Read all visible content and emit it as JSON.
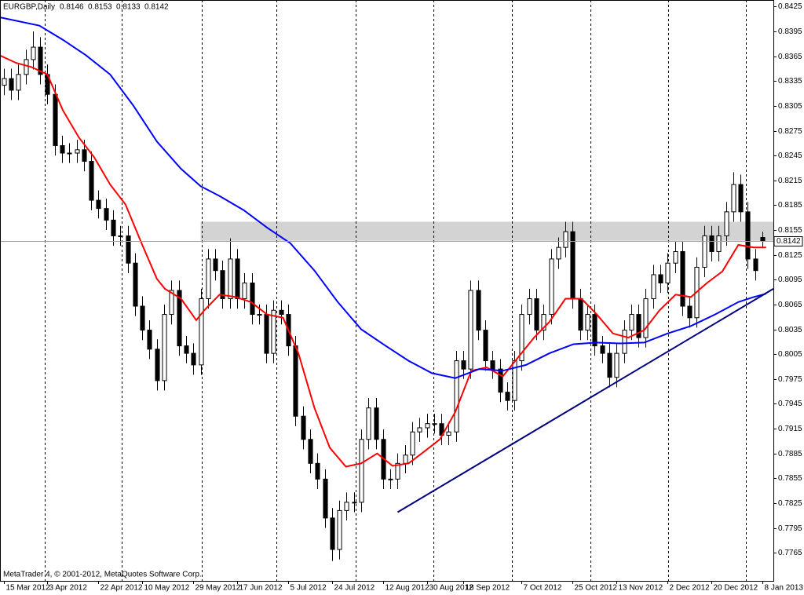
{
  "chart_data": {
    "type": "candlestick",
    "symbol": "EURGBP,Daily",
    "header_ohlc": [
      0.8146,
      0.8153,
      0.8133,
      0.8142
    ],
    "footer": "MetaTrader 4, © 2001-2012, MetaQuotes Software Corp.",
    "xlim": [
      -0.5,
      105.5
    ],
    "ylim": [
      0.7731,
      0.8433
    ],
    "yticks": [
      0.7765,
      0.7795,
      0.7825,
      0.7855,
      0.7885,
      0.7915,
      0.7945,
      0.7975,
      0.8005,
      0.8035,
      0.8065,
      0.8095,
      0.8125,
      0.8155,
      0.8185,
      0.8215,
      0.8245,
      0.8275,
      0.8305,
      0.8335,
      0.8365,
      0.8395,
      0.8425
    ],
    "xticks": [
      {
        "value": 0,
        "label": "15 Mar 2012"
      },
      {
        "value": 6,
        "label": "3 Apr 2012"
      },
      {
        "value": 13,
        "label": "22 Apr 2012"
      },
      {
        "value": 19,
        "label": "10 May 2012"
      },
      {
        "value": 26,
        "label": "29 May 2012"
      },
      {
        "value": 32,
        "label": "17 Jun 2012"
      },
      {
        "value": 39,
        "label": "5 Jul 2012"
      },
      {
        "value": 45,
        "label": "24 Jul 2012"
      },
      {
        "value": 52,
        "label": "12 Aug 2012"
      },
      {
        "value": 58,
        "label": "30 Aug 2012"
      },
      {
        "value": 63,
        "label": "18 Sep 2012"
      },
      {
        "value": 71,
        "label": "7 Oct 2012"
      },
      {
        "value": 78,
        "label": "25 Oct 2012"
      },
      {
        "value": 84,
        "label": "13 Nov 2012"
      },
      {
        "value": 91,
        "label": "2 Dec 2012"
      },
      {
        "value": 97,
        "label": "20 Dec 2012"
      },
      {
        "value": 104,
        "label": "8 Jan 2013"
      }
    ],
    "open": [
      0.833,
      0.8338,
      0.8324,
      0.8343,
      0.8361,
      0.8376,
      0.8343,
      0.8319,
      0.8257,
      0.8248,
      0.8248,
      0.8252,
      0.8238,
      0.8191,
      0.8181,
      0.8167,
      0.8148,
      0.8148,
      0.8115,
      0.8063,
      0.8034,
      0.8011,
      0.7973,
      0.8053,
      0.8082,
      0.8015,
      0.8006,
      0.7992,
      0.8072,
      0.812,
      0.8106,
      0.8072,
      0.812,
      0.8072,
      0.8091,
      0.8053,
      0.8053,
      0.8006,
      0.8058,
      0.8053,
      0.8015,
      0.793,
      0.7902,
      0.7873,
      0.7854,
      0.7807,
      0.7769,
      0.7816,
      0.7826,
      0.7826,
      0.7902,
      0.794,
      0.7902,
      0.7854,
      0.7854,
      0.7873,
      0.7883,
      0.7911,
      0.7916,
      0.7921,
      0.7921,
      0.7907,
      0.7911,
      0.7997,
      0.7987,
      0.8082,
      0.8034,
      0.7997,
      0.7987,
      0.7959,
      0.7949,
      0.7997,
      0.8053,
      0.8072,
      0.8034,
      0.8053,
      0.812,
      0.8134,
      0.8153,
      0.8072,
      0.8034,
      0.8053,
      0.8015,
      0.8006,
      0.7977,
      0.8006,
      0.8034,
      0.8053,
      0.8025,
      0.8072,
      0.8101,
      0.8091,
      0.8115,
      0.8129,
      0.8063,
      0.8049,
      0.811,
      0.8148,
      0.8129,
      0.8148,
      0.8177,
      0.821,
      0.8177,
      0.812,
      0.8146
    ],
    "high": [
      0.835,
      0.835,
      0.8355,
      0.8373,
      0.8395,
      0.8388,
      0.8355,
      0.8331,
      0.8269,
      0.826,
      0.8264,
      0.8264,
      0.825,
      0.8203,
      0.8193,
      0.8179,
      0.816,
      0.816,
      0.8127,
      0.8075,
      0.8046,
      0.8023,
      0.8065,
      0.8094,
      0.8094,
      0.8027,
      0.8018,
      0.8084,
      0.8132,
      0.8132,
      0.8118,
      0.8145,
      0.8132,
      0.8103,
      0.8103,
      0.8065,
      0.8065,
      0.807,
      0.807,
      0.8065,
      0.8027,
      0.7942,
      0.7914,
      0.7885,
      0.7866,
      0.7819,
      0.7828,
      0.7838,
      0.7838,
      0.7914,
      0.7952,
      0.7952,
      0.7914,
      0.7866,
      0.7885,
      0.7895,
      0.7923,
      0.7928,
      0.7933,
      0.7933,
      0.7933,
      0.7923,
      0.8009,
      0.8009,
      0.8094,
      0.8094,
      0.8046,
      0.8009,
      0.7999,
      0.7971,
      0.8009,
      0.8065,
      0.8084,
      0.8084,
      0.8065,
      0.8132,
      0.8146,
      0.8165,
      0.8165,
      0.8084,
      0.8065,
      0.8065,
      0.8027,
      0.8018,
      0.8018,
      0.8046,
      0.8065,
      0.8065,
      0.8084,
      0.8113,
      0.8113,
      0.8127,
      0.8141,
      0.8141,
      0.8075,
      0.8122,
      0.816,
      0.816,
      0.816,
      0.8189,
      0.8225,
      0.8222,
      0.8189,
      0.8132,
      0.8153
    ],
    "low": [
      0.8318,
      0.8312,
      0.8312,
      0.8331,
      0.8349,
      0.8331,
      0.8307,
      0.8245,
      0.8236,
      0.8236,
      0.8236,
      0.8226,
      0.8179,
      0.8169,
      0.8155,
      0.8136,
      0.8136,
      0.8103,
      0.8051,
      0.8022,
      0.7999,
      0.7961,
      0.7961,
      0.8041,
      0.8003,
      0.7994,
      0.798,
      0.798,
      0.806,
      0.8094,
      0.806,
      0.806,
      0.806,
      0.806,
      0.8041,
      0.8041,
      0.7994,
      0.7994,
      0.8041,
      0.8003,
      0.7918,
      0.789,
      0.7861,
      0.7842,
      0.7795,
      0.7755,
      0.7757,
      0.7804,
      0.7814,
      0.7814,
      0.789,
      0.789,
      0.7842,
      0.7842,
      0.7842,
      0.7861,
      0.7871,
      0.7899,
      0.7904,
      0.7909,
      0.7895,
      0.7895,
      0.7899,
      0.7975,
      0.7975,
      0.8022,
      0.7985,
      0.7975,
      0.7947,
      0.7937,
      0.7937,
      0.7985,
      0.8041,
      0.8022,
      0.8022,
      0.8041,
      0.8108,
      0.8122,
      0.806,
      0.8022,
      0.8022,
      0.8003,
      0.7994,
      0.7965,
      0.7965,
      0.7994,
      0.8022,
      0.8013,
      0.8013,
      0.806,
      0.8079,
      0.8079,
      0.8103,
      0.8051,
      0.8037,
      0.8037,
      0.8098,
      0.8117,
      0.8117,
      0.8136,
      0.8165,
      0.8165,
      0.8108,
      0.8094,
      0.8133
    ],
    "close": [
      0.8338,
      0.8324,
      0.8343,
      0.8361,
      0.8376,
      0.8343,
      0.8319,
      0.8257,
      0.8248,
      0.8248,
      0.8252,
      0.8238,
      0.8191,
      0.8181,
      0.8167,
      0.8148,
      0.8148,
      0.8115,
      0.8063,
      0.8034,
      0.8011,
      0.7973,
      0.8053,
      0.8082,
      0.8015,
      0.8006,
      0.7992,
      0.8072,
      0.812,
      0.8106,
      0.8072,
      0.812,
      0.8072,
      0.8091,
      0.8053,
      0.8053,
      0.8006,
      0.8058,
      0.8053,
      0.8015,
      0.793,
      0.7902,
      0.7873,
      0.7854,
      0.7807,
      0.7769,
      0.7816,
      0.7826,
      0.7826,
      0.7902,
      0.794,
      0.7902,
      0.7854,
      0.7854,
      0.7873,
      0.7883,
      0.7911,
      0.7916,
      0.7921,
      0.7921,
      0.7907,
      0.7911,
      0.7997,
      0.7987,
      0.8082,
      0.8034,
      0.7997,
      0.7987,
      0.7959,
      0.7949,
      0.7997,
      0.8053,
      0.8072,
      0.8034,
      0.8053,
      0.812,
      0.8134,
      0.8153,
      0.8072,
      0.8034,
      0.8053,
      0.8015,
      0.8006,
      0.7977,
      0.8006,
      0.8034,
      0.8053,
      0.8025,
      0.8072,
      0.8101,
      0.8091,
      0.8115,
      0.8129,
      0.8063,
      0.8049,
      0.811,
      0.8148,
      0.8129,
      0.8148,
      0.8177,
      0.821,
      0.8177,
      0.812,
      0.8106,
      0.8142
    ],
    "bull_color": "#ffffff",
    "bear_color": "#000000",
    "moving_averages": [
      {
        "color": "#ff0000",
        "x": [
          -0.5,
          1.7,
          3.8,
          6,
          8.1,
          10.3,
          12.4,
          14.6,
          16.7,
          18.9,
          21,
          22.1,
          24.3,
          26.4,
          27.5,
          29.6,
          31.8,
          33.9,
          36.1,
          38.3,
          40.4,
          42.6,
          44.7,
          46.9,
          49,
          51.2,
          53.3,
          55.5,
          57.6,
          59.8,
          61.9,
          64.1,
          66.2,
          68.4,
          70.5,
          72.7,
          74.8,
          77,
          79.2,
          81.3,
          83.5,
          85.6,
          87.8,
          89.9,
          92.1,
          94.2,
          96.4,
          98.5,
          100.7,
          102.8,
          104.5
        ],
        "values": [
          0.8366,
          0.8357,
          0.8352,
          0.8343,
          0.83,
          0.8267,
          0.8243,
          0.821,
          0.8186,
          0.8139,
          0.8096,
          0.8084,
          0.8072,
          0.8046,
          0.8058,
          0.8077,
          0.8074,
          0.8068,
          0.8053,
          0.8049,
          0.8006,
          0.794,
          0.7892,
          0.7869,
          0.7873,
          0.7885,
          0.787,
          0.7873,
          0.7887,
          0.7902,
          0.7935,
          0.7985,
          0.7989,
          0.7978,
          0.8001,
          0.8025,
          0.8044,
          0.8072,
          0.8072,
          0.8053,
          0.803,
          0.8025,
          0.8034,
          0.8058,
          0.8077,
          0.8074,
          0.8091,
          0.8105,
          0.8137,
          0.8134,
          0.8134
        ]
      },
      {
        "color": "#0000ff",
        "x": [
          -0.5,
          4.9,
          8.1,
          11.3,
          14.6,
          17.8,
          21,
          24.3,
          27,
          29.6,
          32.9,
          36.1,
          39.3,
          42.6,
          45.8,
          49,
          52.2,
          55.5,
          58.7,
          61.9,
          65.2,
          68.4,
          71.6,
          74.8,
          78.1,
          81.3,
          84.5,
          87.8,
          91,
          94.2,
          97.5,
          100.7,
          102.8,
          104.5
        ],
        "values": [
          0.8412,
          0.8402,
          0.8385,
          0.8366,
          0.8343,
          0.8305,
          0.8262,
          0.8229,
          0.8208,
          0.8196,
          0.8179,
          0.8158,
          0.8139,
          0.8106,
          0.8068,
          0.8035,
          0.8016,
          0.7997,
          0.7982,
          0.7976,
          0.7987,
          0.7985,
          0.7992,
          0.8006,
          0.8017,
          0.8019,
          0.8018,
          0.8019,
          0.803,
          0.8039,
          0.8053,
          0.8068,
          0.8074,
          0.8078
        ]
      }
    ],
    "zone": {
      "from": 0.8142,
      "to": 0.8165,
      "start": 27,
      "color": "#d3d3d3"
    },
    "trendline": {
      "x": [
        54,
        105.5
      ],
      "values": [
        0.7814,
        0.8084
      ],
      "color": "#000080"
    },
    "current_price": 0.8142
  }
}
